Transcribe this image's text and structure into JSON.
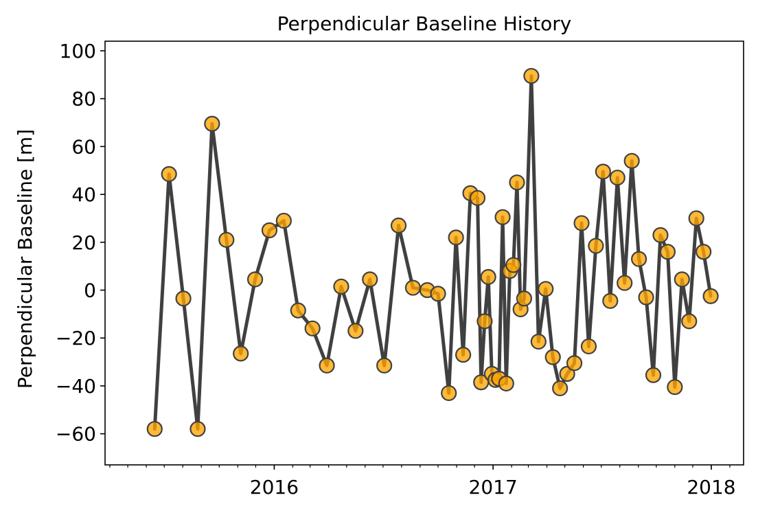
{
  "chart_data": {
    "type": "line",
    "title": "Perpendicular Baseline History",
    "xlabel": "",
    "ylabel": "Perpendicular Baseline [m]",
    "x_major_ticks": [
      "2016-01-01",
      "2017-01-01",
      "2018-01-01"
    ],
    "x_major_labels": [
      "2016",
      "2017",
      "2018"
    ],
    "x_range": [
      "2015-03-24",
      "2018-02-24"
    ],
    "y_ticks": [
      -60,
      -40,
      -20,
      0,
      20,
      40,
      60,
      80,
      100
    ],
    "y_tick_labels": [
      "−60",
      "−40",
      "−20",
      "0",
      "20",
      "40",
      "60",
      "80",
      "100"
    ],
    "ylim": [
      -73,
      104
    ],
    "grid": false,
    "line_color": "#404040",
    "marker_face_color": "#FFA500",
    "marker_edge_color": "#404040",
    "series": [
      {
        "points": [
          {
            "x": "2015-06-15",
            "y": -58
          },
          {
            "x": "2015-07-09",
            "y": 48.5
          },
          {
            "x": "2015-08-02",
            "y": -3.5
          },
          {
            "x": "2015-08-26",
            "y": -58
          },
          {
            "x": "2015-09-19",
            "y": 69.5
          },
          {
            "x": "2015-10-13",
            "y": 21
          },
          {
            "x": "2015-11-06",
            "y": -26.5
          },
          {
            "x": "2015-11-30",
            "y": 4.5
          },
          {
            "x": "2015-12-24",
            "y": 25
          },
          {
            "x": "2016-01-17",
            "y": 29
          },
          {
            "x": "2016-02-10",
            "y": -8.5
          },
          {
            "x": "2016-03-05",
            "y": -16
          },
          {
            "x": "2016-03-29",
            "y": -31.5
          },
          {
            "x": "2016-04-22",
            "y": 1.5
          },
          {
            "x": "2016-05-16",
            "y": -17
          },
          {
            "x": "2016-06-09",
            "y": 4.5
          },
          {
            "x": "2016-07-03",
            "y": -31.5
          },
          {
            "x": "2016-07-27",
            "y": 27
          },
          {
            "x": "2016-08-20",
            "y": 1
          },
          {
            "x": "2016-09-13",
            "y": 0
          },
          {
            "x": "2016-10-01",
            "y": -1.5
          },
          {
            "x": "2016-10-19",
            "y": -43
          },
          {
            "x": "2016-10-31",
            "y": 22
          },
          {
            "x": "2016-11-12",
            "y": -27
          },
          {
            "x": "2016-11-24",
            "y": 40.5
          },
          {
            "x": "2016-12-06",
            "y": 38.5
          },
          {
            "x": "2016-12-12",
            "y": -38.5
          },
          {
            "x": "2016-12-18",
            "y": -13
          },
          {
            "x": "2016-12-24",
            "y": 5.5
          },
          {
            "x": "2016-12-30",
            "y": -35
          },
          {
            "x": "2017-01-05",
            "y": -37.5
          },
          {
            "x": "2017-01-11",
            "y": -37
          },
          {
            "x": "2017-01-17",
            "y": 30.5
          },
          {
            "x": "2017-01-23",
            "y": -39
          },
          {
            "x": "2017-01-29",
            "y": 8
          },
          {
            "x": "2017-02-04",
            "y": 10.5
          },
          {
            "x": "2017-02-10",
            "y": 45
          },
          {
            "x": "2017-02-16",
            "y": -8
          },
          {
            "x": "2017-02-22",
            "y": -3.5
          },
          {
            "x": "2017-03-06",
            "y": 89.5
          },
          {
            "x": "2017-03-18",
            "y": -21.5
          },
          {
            "x": "2017-03-30",
            "y": 0.5
          },
          {
            "x": "2017-04-11",
            "y": -28
          },
          {
            "x": "2017-04-23",
            "y": -41
          },
          {
            "x": "2017-05-05",
            "y": -35
          },
          {
            "x": "2017-05-17",
            "y": -30.5
          },
          {
            "x": "2017-05-29",
            "y": 28
          },
          {
            "x": "2017-06-10",
            "y": -23.5
          },
          {
            "x": "2017-06-22",
            "y": 18.5
          },
          {
            "x": "2017-07-04",
            "y": 49.5
          },
          {
            "x": "2017-07-16",
            "y": -4.5
          },
          {
            "x": "2017-07-28",
            "y": 47
          },
          {
            "x": "2017-08-09",
            "y": 3
          },
          {
            "x": "2017-08-21",
            "y": 54
          },
          {
            "x": "2017-09-02",
            "y": 13
          },
          {
            "x": "2017-09-14",
            "y": -3
          },
          {
            "x": "2017-09-26",
            "y": -35.5
          },
          {
            "x": "2017-10-08",
            "y": 23
          },
          {
            "x": "2017-10-20",
            "y": 16
          },
          {
            "x": "2017-11-01",
            "y": -40.5
          },
          {
            "x": "2017-11-13",
            "y": 4.5
          },
          {
            "x": "2017-11-25",
            "y": -13
          },
          {
            "x": "2017-12-07",
            "y": 30
          },
          {
            "x": "2017-12-19",
            "y": 16
          },
          {
            "x": "2017-12-31",
            "y": -2.5
          }
        ]
      }
    ]
  }
}
